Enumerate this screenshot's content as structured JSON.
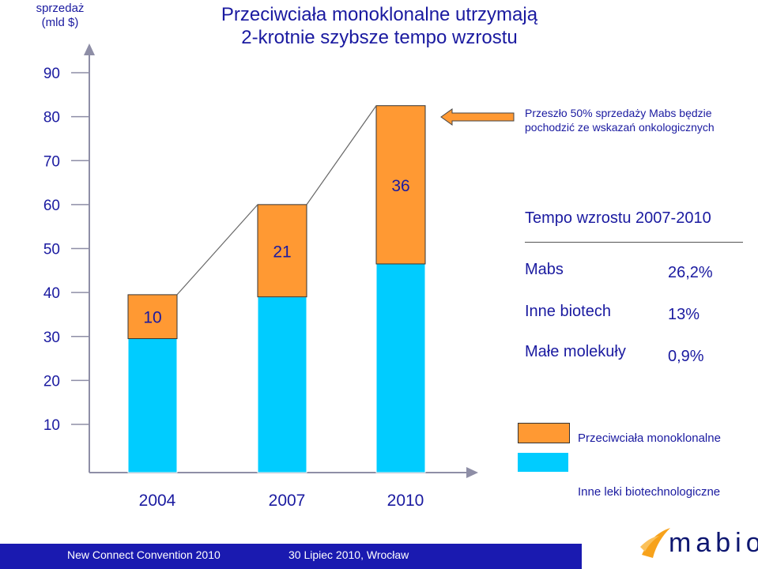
{
  "title": {
    "line1": "Przeciwciała monoklonalne utrzymają",
    "line2": "2-krotnie szybsze tempo wzrostu"
  },
  "y_axis_label": {
    "line1": "sprzedaż",
    "line2": "(mld $)"
  },
  "note": "Przeszło 50% sprzedaży Mabs będzie pochodzić ze wskazań onkologicznych",
  "growth": {
    "title": "Tempo wzrostu 2007-2010",
    "rows": [
      {
        "label": "Mabs",
        "value": "26,2%"
      },
      {
        "label": "Inne biotech",
        "value": "13%"
      },
      {
        "label": "Małe molekuły",
        "value": "0,9%"
      }
    ]
  },
  "legend": [
    {
      "label": "Przeciwciała monoklonalne",
      "color": "#ff9933"
    },
    {
      "label": "Inne leki biotechnologiczne",
      "color": "#00ccff"
    }
  ],
  "footer": {
    "left": "New Connect Convention 2010",
    "right": "30 Lipiec  2010, Wrocław"
  },
  "logo": {
    "text": "mabion"
  },
  "colors": {
    "mabs": "#ff9933",
    "other": "#00ccff",
    "text": "#1a1aa0",
    "footer": "#1a1ab0"
  },
  "chart_data": {
    "type": "bar",
    "stacked": true,
    "categories": [
      "2004",
      "2007",
      "2010"
    ],
    "series": [
      {
        "name": "Inne leki biotechnologiczne",
        "values": [
          29.5,
          39,
          46.5
        ],
        "color": "#00ccff"
      },
      {
        "name": "Przeciwciała monoklonalne",
        "values": [
          10,
          21,
          36
        ],
        "color": "#ff9933"
      }
    ],
    "data_labels": [
      "10",
      "21",
      "36"
    ],
    "y_ticks": [
      10,
      20,
      30,
      40,
      50,
      60,
      70,
      80,
      90
    ],
    "ylim": [
      5,
      95
    ],
    "title": "Przeciwciała monoklonalne utrzymają 2-krotnie szybsze tempo wzrostu",
    "ylabel": "sprzedaż (mld $)",
    "xlabel": "",
    "grid": false,
    "legend_position": "bottom-right"
  }
}
